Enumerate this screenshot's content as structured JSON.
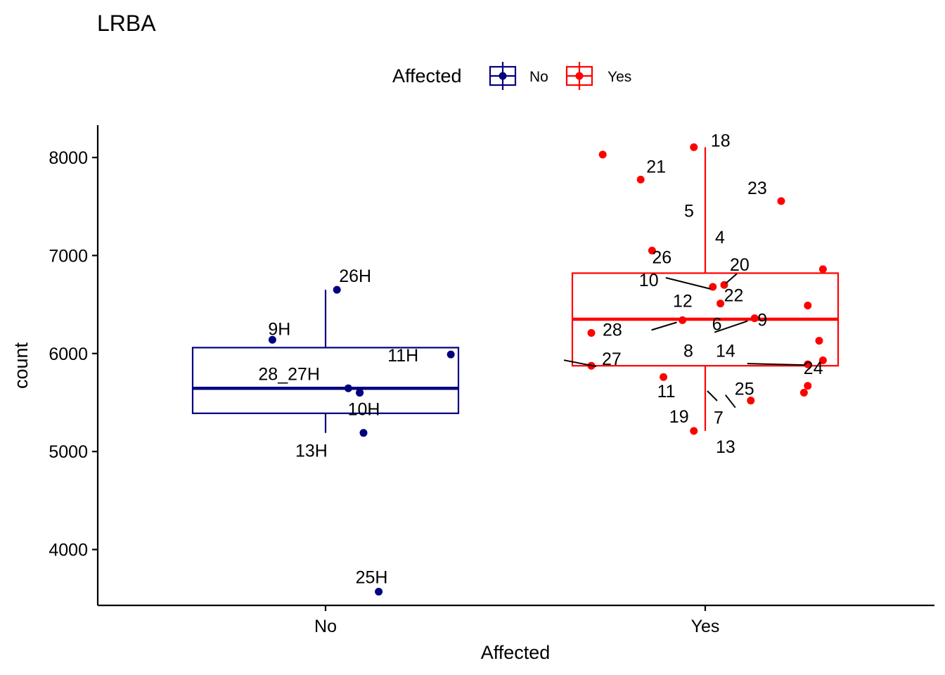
{
  "chart_data": {
    "type": "boxplot",
    "title": "LRBA",
    "xlabel": "Affected",
    "ylabel": "count",
    "categories": [
      "No",
      "Yes"
    ],
    "ylim": [
      3430,
      8330
    ],
    "yticks": [
      4000,
      5000,
      6000,
      7000,
      8000
    ],
    "legend": {
      "title": "Affected",
      "position": "top",
      "entries": [
        {
          "name": "No",
          "color": "#000080"
        },
        {
          "name": "Yes",
          "color": "#ff0000"
        }
      ]
    },
    "boxes": [
      {
        "group": "No",
        "color": "#000080",
        "whisker_low": 5190,
        "q1": 5390,
        "median": 5645,
        "q3": 6060,
        "whisker_high": 6650
      },
      {
        "group": "Yes",
        "color": "#ff0000",
        "whisker_low": 5210,
        "q1": 5875,
        "median": 6350,
        "q3": 6820,
        "whisker_high": 8105
      }
    ],
    "points": [
      {
        "group": "No",
        "label": "26H",
        "y": 6650,
        "jitter": 0.03
      },
      {
        "group": "No",
        "label": "9H",
        "y": 6140,
        "jitter": -0.14
      },
      {
        "group": "No",
        "label": "11H",
        "y": 5990,
        "jitter": 0.33
      },
      {
        "group": "No",
        "label": "28_27H",
        "y": 5645,
        "jitter": 0.06
      },
      {
        "group": "No",
        "label": "",
        "y": 5600,
        "jitter": 0.09
      },
      {
        "group": "No",
        "label": "10H",
        "y": 5600,
        "jitter": 0.09
      },
      {
        "group": "No",
        "label": "13H",
        "y": 5190,
        "jitter": 0.1
      },
      {
        "group": "No",
        "label": "25H",
        "y": 3570,
        "jitter": 0.14
      },
      {
        "group": "Yes",
        "label": "18",
        "y": 8105,
        "jitter": -0.03
      },
      {
        "group": "Yes",
        "label": "",
        "y": 8030,
        "jitter": -0.27
      },
      {
        "group": "Yes",
        "label": "21",
        "y": 7775,
        "jitter": -0.17
      },
      {
        "group": "Yes",
        "label": "23",
        "y": 7555,
        "jitter": 0.2
      },
      {
        "group": "Yes",
        "label": "26",
        "y": 7050,
        "jitter": -0.14
      },
      {
        "group": "Yes",
        "label": "",
        "y": 6860,
        "jitter": 0.31
      },
      {
        "group": "Yes",
        "label": "20",
        "y": 6700,
        "jitter": 0.05
      },
      {
        "group": "Yes",
        "label": "10",
        "y": 6680,
        "jitter": 0.02
      },
      {
        "group": "Yes",
        "label": "22",
        "y": 6510,
        "jitter": 0.04
      },
      {
        "group": "Yes",
        "label": "",
        "y": 6490,
        "jitter": 0.27
      },
      {
        "group": "Yes",
        "label": "9",
        "y": 6360,
        "jitter": 0.13
      },
      {
        "group": "Yes",
        "label": "6",
        "y": 6340,
        "jitter": -0.06
      },
      {
        "group": "Yes",
        "label": "28",
        "y": 6210,
        "jitter": -0.3
      },
      {
        "group": "Yes",
        "label": "",
        "y": 6130,
        "jitter": 0.3
      },
      {
        "group": "Yes",
        "label": "",
        "y": 5930,
        "jitter": 0.31
      },
      {
        "group": "Yes",
        "label": "24",
        "y": 5890,
        "jitter": 0.27
      },
      {
        "group": "Yes",
        "label": "27",
        "y": 5875,
        "jitter": -0.3
      },
      {
        "group": "Yes",
        "label": "11",
        "y": 5760,
        "jitter": -0.11
      },
      {
        "group": "Yes",
        "label": "",
        "y": 5670,
        "jitter": 0.27
      },
      {
        "group": "Yes",
        "label": "",
        "y": 5600,
        "jitter": 0.26
      },
      {
        "group": "Yes",
        "label": "25",
        "y": 5520,
        "jitter": 0.12
      },
      {
        "group": "Yes",
        "label": "19",
        "y": 5210,
        "jitter": -0.03
      }
    ],
    "text_labels": [
      {
        "group": "Yes",
        "text": "5",
        "y": 7460
      },
      {
        "group": "Yes",
        "text": "4",
        "y": 7190
      },
      {
        "group": "Yes",
        "text": "12",
        "y": 6540
      },
      {
        "group": "Yes",
        "text": "8",
        "y": 6030
      },
      {
        "group": "Yes",
        "text": "14",
        "y": 6030
      },
      {
        "group": "Yes",
        "text": "7",
        "y": 5350
      },
      {
        "group": "Yes",
        "text": "13",
        "y": 5050
      }
    ]
  }
}
